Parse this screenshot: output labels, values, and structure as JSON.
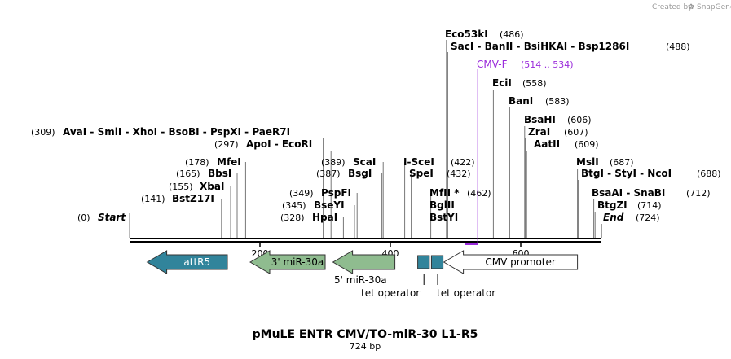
{
  "credit": {
    "text": "Created by",
    "brand": "SnapGene"
  },
  "title": "pMuLE ENTR CMV/TO-miR-30 L1-R5",
  "length_label": "724 bp",
  "total_bp": 724,
  "colors": {
    "backbone": "#000000",
    "primer": "#9A2BDB",
    "attR5": "#31849B",
    "mir": "#8FBC8F",
    "tet": "#31849B",
    "promoter": "#FFFFFF"
  },
  "ticks": [
    {
      "label": "200",
      "bp": 200
    },
    {
      "label": "400",
      "bp": 400
    },
    {
      "label": "600",
      "bp": 600
    }
  ],
  "sites": [
    {
      "name": "Start",
      "pos": "(0)",
      "bp": 0,
      "italic": true
    },
    {
      "name": "BstZ17I",
      "pos": "(141)",
      "bp": 141
    },
    {
      "name": "XbaI",
      "pos": "(155)",
      "bp": 155
    },
    {
      "name": "BbsI",
      "pos": "(165)",
      "bp": 165
    },
    {
      "name": "MfeI",
      "pos": "(178)",
      "bp": 178
    },
    {
      "name": "ApoI - EcoRI",
      "pos": "(297)",
      "bp": 297
    },
    {
      "name": "AvaI - SmlI - XhoI - BsoBI - PspXI - PaeR7I",
      "pos": "(309)",
      "bp": 309
    },
    {
      "name": "HpaI",
      "pos": "(328)",
      "bp": 328
    },
    {
      "name": "BseYI",
      "pos": "(345)",
      "bp": 345
    },
    {
      "name": "PspFI",
      "pos": "(349)",
      "bp": 349
    },
    {
      "name": "BsgI",
      "pos": "(387)",
      "bp": 387
    },
    {
      "name": "ScaI",
      "pos": "(389)",
      "bp": 389
    },
    {
      "name": "I-SceI",
      "pos": "(422)",
      "bp": 422
    },
    {
      "name": "SpeI",
      "pos": "(432)",
      "bp": 432
    },
    {
      "name": "MfII *",
      "pos": "(462)",
      "bp": 462
    },
    {
      "name": "BglII",
      "pos": "",
      "bp": 462
    },
    {
      "name": "BstYI",
      "pos": "",
      "bp": 462
    },
    {
      "name": "Eco53kI",
      "pos": "(486)",
      "bp": 486
    },
    {
      "name": "SacI - BanII - BsiHKAI - Bsp1286I",
      "pos": "(488)",
      "bp": 488
    },
    {
      "name": "EciI",
      "pos": "(558)",
      "bp": 558
    },
    {
      "name": "BanI",
      "pos": "(583)",
      "bp": 583
    },
    {
      "name": "BsaHI",
      "pos": "(606)",
      "bp": 606
    },
    {
      "name": "ZraI",
      "pos": "(607)",
      "bp": 607
    },
    {
      "name": "AatII",
      "pos": "(609)",
      "bp": 609
    },
    {
      "name": "MslI",
      "pos": "(687)",
      "bp": 687
    },
    {
      "name": "BtgI - StyI - NcoI",
      "pos": "(688)",
      "bp": 688
    },
    {
      "name": "BsaAI - SnaBI",
      "pos": "(712)",
      "bp": 712
    },
    {
      "name": "BtgZI",
      "pos": "(714)",
      "bp": 714
    },
    {
      "name": "End",
      "pos": "(724)",
      "bp": 724,
      "italic": true
    }
  ],
  "primer": {
    "name": "CMV-F",
    "range": "(514 .. 534)",
    "start_bp": 514,
    "end_bp": 534
  },
  "features": [
    {
      "name": "attR5",
      "start_bp": 27,
      "end_bp": 150,
      "direction": "reverse",
      "label_inside": true
    },
    {
      "name": "3' miR-30a",
      "start_bp": 185,
      "end_bp": 300,
      "direction": "reverse",
      "label_inside": true
    },
    {
      "name": "5' miR-30a",
      "start_bp": 312,
      "end_bp": 407,
      "direction": "reverse",
      "label_inside": false
    },
    {
      "name": "tet operator",
      "start_bp": 442,
      "end_bp": 461,
      "direction": "none",
      "label_inside": false
    },
    {
      "name": "tet operator",
      "start_bp": 463,
      "end_bp": 482,
      "direction": "none",
      "label_inside": false
    },
    {
      "name": "CMV promoter",
      "start_bp": 482,
      "end_bp": 687,
      "direction": "reverse",
      "label_inside": true
    }
  ]
}
